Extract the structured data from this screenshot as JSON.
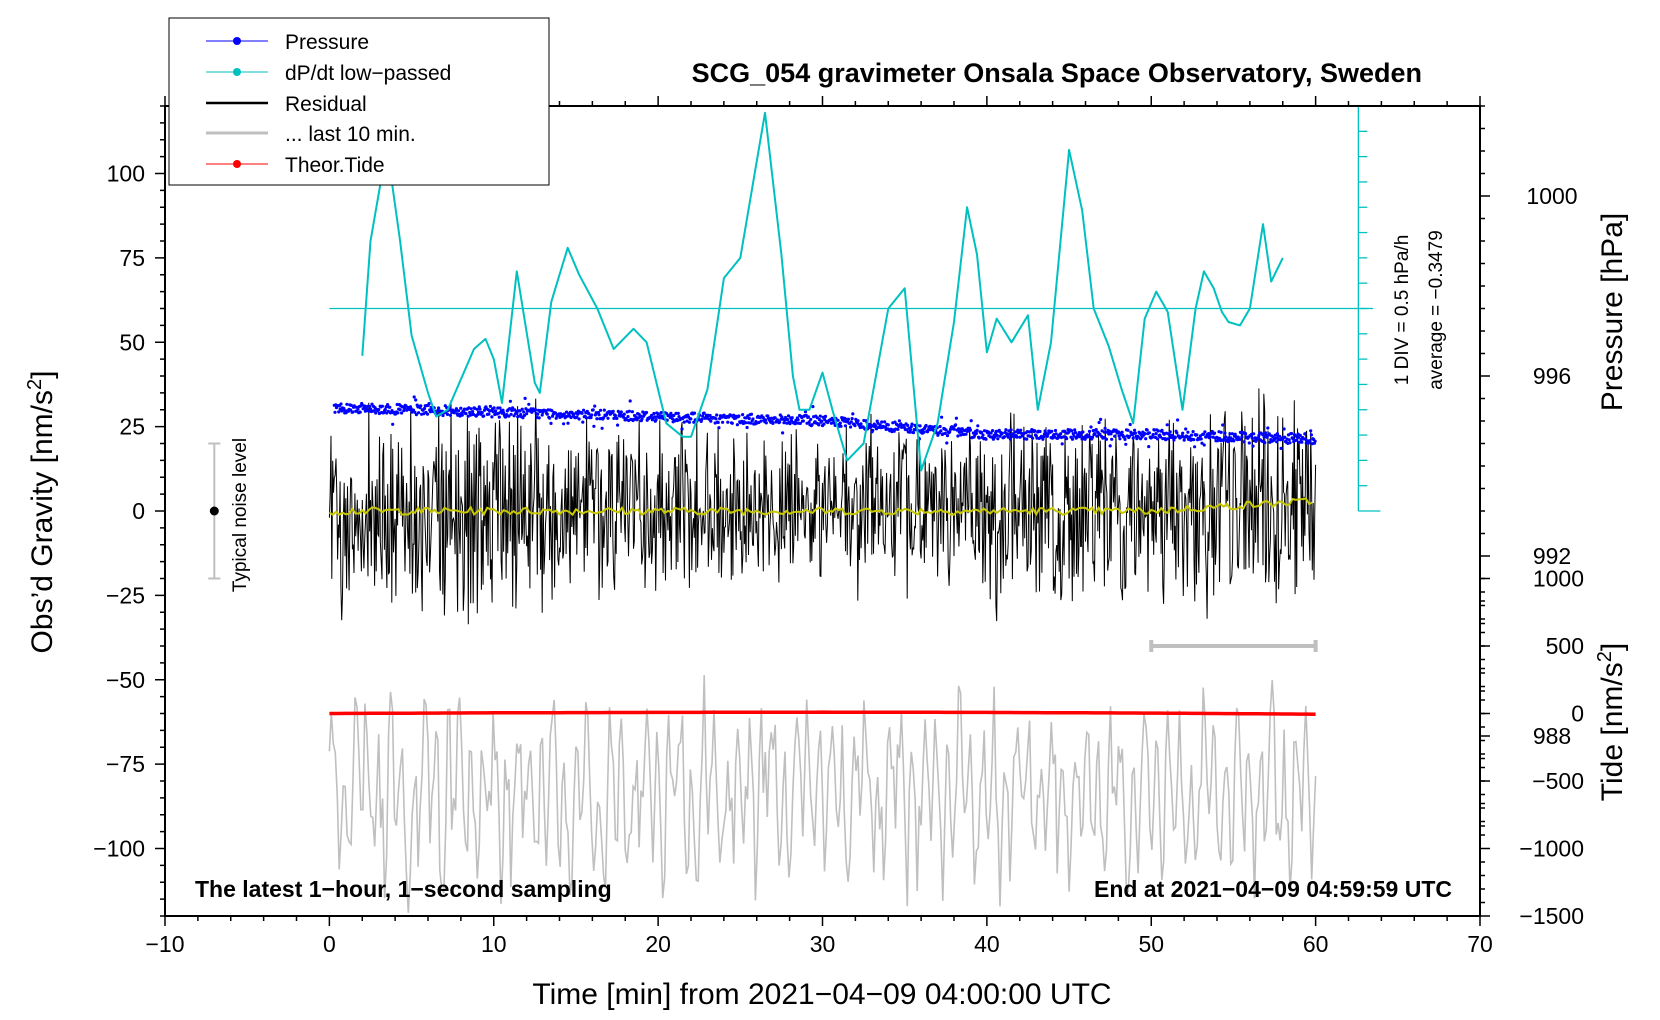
{
  "chart_data": {
    "type": "line",
    "title": "SCG_054 gravimeter Onsala Space Observatory, Sweden",
    "xlabel": "Time [min] from 2021−04−09 04:00:00 UTC",
    "ylabel_left_main": "Obs’d Gravity [nm/s",
    "ylabel_left_sup": "2",
    "ylabel_left_end": "]",
    "ylabel_right_pressure": "Pressure [hPa]",
    "ylabel_right_tide_main": "Tide [nm/s",
    "ylabel_right_tide_sup": "2",
    "ylabel_right_tide_end": "]",
    "xlim": [
      -10,
      70
    ],
    "ylim_gravity": [
      -120,
      120
    ],
    "ylim_pressure": [
      984,
      1002
    ],
    "ylim_tide": [
      -1500,
      1000
    ],
    "x_ticks": [
      "−10",
      "0",
      "10",
      "20",
      "30",
      "40",
      "50",
      "60",
      "70"
    ],
    "y_ticks_gravity": [
      "100",
      "75",
      "50",
      "25",
      "0",
      "−25",
      "−50",
      "−75",
      "−100"
    ],
    "y_ticks_pressure": [
      "1000",
      "996",
      "992",
      "988"
    ],
    "y_ticks_tide": [
      "1000",
      "500",
      "0",
      "−500",
      "−1000",
      "−1500"
    ],
    "legend": [
      {
        "label": "Pressure",
        "color": "#0000ff",
        "marker": "dot"
      },
      {
        "label": "dP/dt low−passed",
        "color": "#00c0c0",
        "marker": "dot"
      },
      {
        "label": "Residual",
        "color": "#000000",
        "marker": "line"
      },
      {
        "label": "... last 10 min.",
        "color": "#bfbfbf",
        "marker": "line"
      },
      {
        "label": "Theor.Tide",
        "color": "#ff0000",
        "marker": "dot"
      }
    ],
    "noise_label": "Typical noise level",
    "noise_level": 20,
    "note_left": "The latest 1−hour, 1−second sampling",
    "note_right": "End at 2021−04−09 04:59:59 UTC",
    "dpdt_scale_label": "1 DIV = 0.5 hPa/h",
    "dpdt_average_label": "average = −0.3479",
    "series": [
      {
        "name": "Pressure",
        "axis": "pressure",
        "unit": "hPa",
        "x": [
          0,
          10,
          20,
          30,
          40,
          50,
          60
        ],
        "values": [
          995.3,
          995.2,
          995.1,
          995.0,
          994.7,
          994.7,
          994.6
        ]
      },
      {
        "name": "dP/dt low-passed",
        "axis": "gravity-display",
        "x": [
          2,
          2.5,
          3.5,
          4.3,
          5,
          6,
          6.5,
          7.2,
          8.8,
          9.5,
          10,
          10.5,
          11.4,
          12.5,
          12.8,
          13.5,
          14.5,
          15.2,
          16.3,
          17.3,
          18.5,
          19.3,
          20.5,
          21.5,
          22,
          23,
          24,
          25,
          26.5,
          27.5,
          28.2,
          28.6,
          29.2,
          30,
          30.6,
          31.5,
          32.5,
          34,
          35,
          36,
          37,
          38,
          38.8,
          39.4,
          40,
          40.6,
          41.5,
          42.5,
          43.1,
          43.9,
          45,
          45.8,
          46.5,
          47.4,
          48.2,
          48.9,
          49.6,
          50.3,
          51,
          51.9,
          52.7,
          53.2,
          53.8,
          54.3,
          54.7,
          55.4,
          56,
          56.8,
          57.3,
          58
        ],
        "values": [
          46,
          80,
          108,
          80,
          52,
          35,
          28,
          30,
          48,
          51,
          45,
          32,
          71,
          38,
          35,
          62,
          78,
          70,
          60,
          48,
          54,
          50,
          26,
          22,
          22,
          36,
          69,
          75,
          118,
          76,
          40,
          30,
          30,
          41,
          30,
          15,
          20,
          60,
          66,
          12,
          26,
          56,
          90,
          76,
          47,
          57,
          50,
          58,
          30,
          50,
          107,
          89,
          60,
          49,
          36,
          26,
          57,
          65,
          59,
          30,
          60,
          71,
          66,
          59,
          56,
          55,
          60,
          85,
          68,
          75
        ]
      },
      {
        "name": "Residual",
        "axis": "gravity",
        "unit": "nm/s2",
        "x": [
          0,
          10,
          20,
          30,
          40,
          50,
          60
        ],
        "envelope": [
          35,
          38,
          30,
          28,
          34,
          35,
          40
        ]
      },
      {
        "name": "Residual smoothed",
        "axis": "gravity",
        "unit": "nm/s2",
        "x": [
          0,
          10,
          20,
          30,
          40,
          50,
          60
        ],
        "values": [
          0,
          0,
          0,
          0,
          0,
          0,
          3
        ]
      },
      {
        "name": "... last 10 min.",
        "axis": "gravity-display",
        "x": [
          0,
          10,
          20,
          30,
          40,
          50,
          60
        ],
        "envelope": [
          -82,
          -84,
          -84,
          -82,
          -85,
          -84,
          -82
        ]
      },
      {
        "name": "Theor.Tide",
        "axis": "tide",
        "unit": "nm/s2",
        "x": [
          0,
          10,
          20,
          30,
          40,
          50,
          60
        ],
        "values": [
          0,
          5,
          8,
          10,
          8,
          3,
          -5
        ]
      }
    ],
    "noise_bar_x": -7,
    "last10_range_x": [
      50,
      60
    ]
  }
}
